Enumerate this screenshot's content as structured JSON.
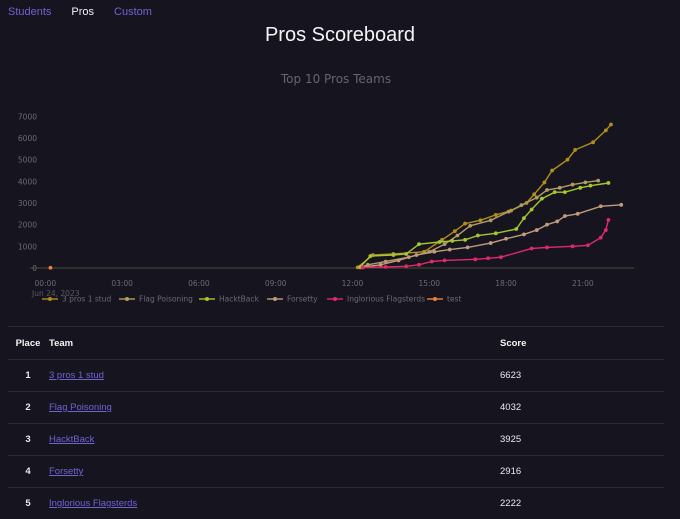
{
  "nav": {
    "items": [
      {
        "label": "Students",
        "active": false
      },
      {
        "label": "Pros",
        "active": true
      },
      {
        "label": "Custom",
        "active": false
      }
    ]
  },
  "page": {
    "title": "Pros Scoreboard"
  },
  "colors": {
    "background": "#16151f",
    "link": "#6f63d4",
    "series": [
      "#b08f1d",
      "#b39b66",
      "#a6c62f",
      "#c29a7c",
      "#e0296b",
      "#f0803c"
    ]
  },
  "chart_data": {
    "type": "line",
    "title": "Top 10 Pros Teams",
    "xlabel": "",
    "ylabel": "",
    "x_tick_labels": [
      "00:00",
      "03:00",
      "06:00",
      "09:00",
      "12:00",
      "15:00",
      "18:00",
      "21:00"
    ],
    "x_sub_label": "Jun 24, 2023",
    "y_tick_labels": [
      "0",
      "1000",
      "2000",
      "3000",
      "4000",
      "5000",
      "6000",
      "7000"
    ],
    "xlim_hours": [
      -0.6,
      23.0
    ],
    "ylim": [
      0,
      7200
    ],
    "grid": false,
    "legend_position": "bottom",
    "series": [
      {
        "name": "3 pros 1 stud",
        "points": [
          [
            12.2,
            30
          ],
          [
            12.8,
            600
          ],
          [
            13.6,
            650
          ],
          [
            14.8,
            750
          ],
          [
            15.5,
            1300
          ],
          [
            16.0,
            1700
          ],
          [
            16.4,
            2050
          ],
          [
            17.0,
            2200
          ],
          [
            17.6,
            2450
          ],
          [
            18.2,
            2650
          ],
          [
            18.8,
            3000
          ],
          [
            19.1,
            3400
          ],
          [
            19.5,
            3950
          ],
          [
            19.8,
            4500
          ],
          [
            20.4,
            5000
          ],
          [
            20.7,
            5450
          ],
          [
            21.4,
            5800
          ],
          [
            21.9,
            6350
          ],
          [
            22.1,
            6623
          ]
        ]
      },
      {
        "name": "Flag Poisoning",
        "points": [
          [
            12.3,
            30
          ],
          [
            12.6,
            150
          ],
          [
            13.3,
            300
          ],
          [
            14.2,
            500
          ],
          [
            15.0,
            750
          ],
          [
            15.6,
            1100
          ],
          [
            16.1,
            1500
          ],
          [
            16.6,
            1950
          ],
          [
            17.4,
            2200
          ],
          [
            18.1,
            2600
          ],
          [
            18.6,
            2900
          ],
          [
            19.2,
            3250
          ],
          [
            19.6,
            3600
          ],
          [
            20.1,
            3700
          ],
          [
            20.6,
            3850
          ],
          [
            21.1,
            3950
          ],
          [
            21.6,
            4032
          ]
        ]
      },
      {
        "name": "HacktBack",
        "points": [
          [
            12.3,
            50
          ],
          [
            12.7,
            550
          ],
          [
            13.6,
            600
          ],
          [
            14.1,
            650
          ],
          [
            14.6,
            1100
          ],
          [
            15.4,
            1200
          ],
          [
            15.9,
            1250
          ],
          [
            16.4,
            1300
          ],
          [
            16.9,
            1500
          ],
          [
            17.6,
            1600
          ],
          [
            18.4,
            1800
          ],
          [
            18.7,
            2300
          ],
          [
            19.0,
            2700
          ],
          [
            19.4,
            3200
          ],
          [
            19.9,
            3500
          ],
          [
            20.3,
            3500
          ],
          [
            20.9,
            3700
          ],
          [
            21.3,
            3800
          ],
          [
            22.0,
            3925
          ]
        ]
      },
      {
        "name": "Forsetty",
        "points": [
          [
            12.4,
            40
          ],
          [
            13.1,
            150
          ],
          [
            13.8,
            350
          ],
          [
            14.5,
            600
          ],
          [
            15.2,
            750
          ],
          [
            15.8,
            850
          ],
          [
            16.5,
            950
          ],
          [
            17.4,
            1150
          ],
          [
            18.0,
            1350
          ],
          [
            18.7,
            1550
          ],
          [
            19.2,
            1750
          ],
          [
            19.6,
            2000
          ],
          [
            20.0,
            2150
          ],
          [
            20.3,
            2400
          ],
          [
            20.8,
            2500
          ],
          [
            21.7,
            2850
          ],
          [
            22.5,
            2916
          ]
        ]
      },
      {
        "name": "Inglorious Flagsterds",
        "points": [
          [
            12.4,
            20
          ],
          [
            13.3,
            50
          ],
          [
            14.1,
            80
          ],
          [
            14.6,
            150
          ],
          [
            15.1,
            300
          ],
          [
            15.6,
            350
          ],
          [
            16.8,
            400
          ],
          [
            17.3,
            450
          ],
          [
            17.8,
            500
          ],
          [
            19.0,
            900
          ],
          [
            19.6,
            950
          ],
          [
            20.6,
            1000
          ],
          [
            21.2,
            1050
          ],
          [
            21.7,
            1400
          ],
          [
            21.9,
            1750
          ],
          [
            22.0,
            2222
          ]
        ]
      },
      {
        "name": "test",
        "points": [
          [
            0.2,
            10
          ]
        ]
      }
    ]
  },
  "table": {
    "headers": {
      "place": "Place",
      "team": "Team",
      "score": "Score"
    },
    "rows": [
      {
        "place": "1",
        "team": "3 pros 1 stud",
        "score": "6623"
      },
      {
        "place": "2",
        "team": "Flag Poisoning",
        "score": "4032"
      },
      {
        "place": "3",
        "team": "HacktBack",
        "score": "3925"
      },
      {
        "place": "4",
        "team": "Forsetty",
        "score": "2916"
      },
      {
        "place": "5",
        "team": "Inglorious Flagsterds",
        "score": "2222"
      }
    ]
  }
}
